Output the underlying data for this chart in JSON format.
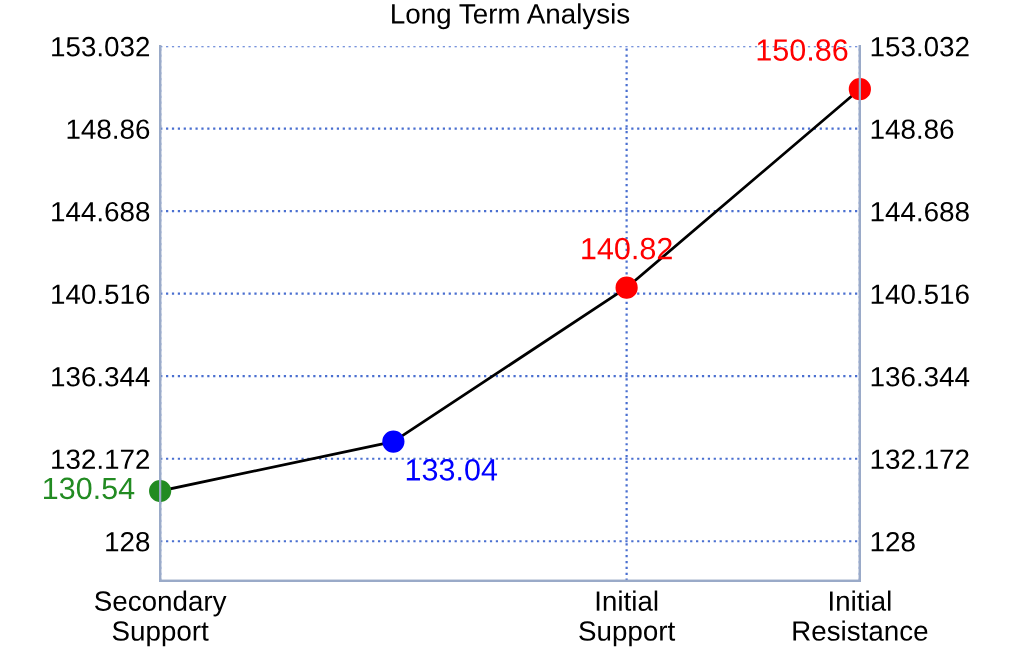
{
  "chart_data": {
    "type": "line",
    "title": "Long Term Analysis",
    "categories": [
      "Secondary\nSupport",
      null,
      "Initial\nSupport",
      "Initial\nResistance"
    ],
    "series": [
      {
        "color": "#000000",
        "colors": [
          "#228b22",
          "#0000ff",
          "#ff0000",
          "#ff0000"
        ],
        "values": [
          130.54,
          133.04,
          140.82,
          150.86
        ],
        "value_labels": [
          "130.54",
          "133.04",
          "140.82",
          "150.86"
        ]
      }
    ],
    "ylim": [
      126,
      153.032
    ],
    "yticks": [
      128,
      132.172,
      136.344,
      140.516,
      144.688,
      148.86,
      153.032
    ],
    "y2lim": [
      126,
      153.032
    ],
    "y2ticks": [
      128,
      132.172,
      136.344,
      140.516,
      144.688,
      148.86,
      153.032
    ],
    "grid": true,
    "marker": "circle",
    "line_style": "solid"
  }
}
